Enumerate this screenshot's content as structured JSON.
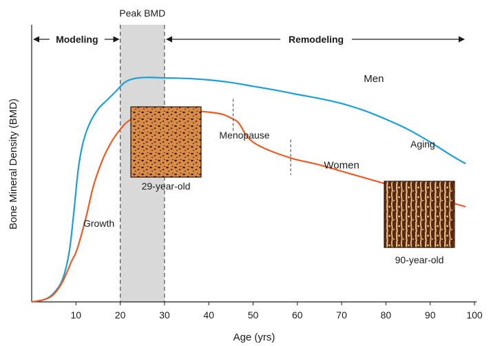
{
  "chart_data": {
    "type": "line",
    "title": "",
    "xlabel": "Age (yrs)",
    "ylabel": "Bone Mineral Density (BMD)",
    "xlim": [
      0,
      100
    ],
    "ylim": [
      0,
      100
    ],
    "x_ticks": [
      "10",
      "20",
      "30",
      "40",
      "50",
      "60",
      "70",
      "80",
      "90",
      "100"
    ],
    "series": [
      {
        "name": "Men",
        "color": "#1a9fd6",
        "points": [
          [
            0,
            0
          ],
          [
            3,
            1
          ],
          [
            5,
            3.5
          ],
          [
            7,
            9
          ],
          [
            8.5,
            20
          ],
          [
            9.5,
            35
          ],
          [
            10.5,
            52
          ],
          [
            11.5,
            62
          ],
          [
            13,
            70
          ],
          [
            15,
            76
          ],
          [
            17,
            79.5
          ],
          [
            19,
            83
          ],
          [
            21,
            86.5
          ],
          [
            23,
            88
          ],
          [
            26,
            88.5
          ],
          [
            30,
            88.3
          ],
          [
            35,
            88.1
          ],
          [
            40,
            87.5
          ],
          [
            45,
            86.5
          ],
          [
            50,
            85
          ],
          [
            55,
            83.5
          ],
          [
            60,
            81.8
          ],
          [
            65,
            80.2
          ],
          [
            70,
            78.2
          ],
          [
            75,
            75.5
          ],
          [
            80,
            72
          ],
          [
            85,
            68
          ],
          [
            90,
            63
          ],
          [
            95,
            57.5
          ],
          [
            98,
            54.5
          ]
        ]
      },
      {
        "name": "Women",
        "color": "#ef5a24",
        "points": [
          [
            0,
            0
          ],
          [
            3,
            1
          ],
          [
            5,
            3
          ],
          [
            7,
            8
          ],
          [
            9,
            16
          ],
          [
            10,
            19.5
          ],
          [
            11,
            25
          ],
          [
            12.5,
            35
          ],
          [
            14,
            46
          ],
          [
            16,
            56
          ],
          [
            18,
            63
          ],
          [
            20,
            68
          ],
          [
            22,
            71.5
          ],
          [
            25,
            74
          ],
          [
            27.5,
            75.3
          ],
          [
            30,
            75.6
          ],
          [
            35,
            75.5
          ],
          [
            40,
            74.8
          ],
          [
            43,
            74
          ],
          [
            45,
            72.5
          ],
          [
            46.5,
            71
          ],
          [
            47.5,
            68.5
          ],
          [
            48.5,
            65.5
          ],
          [
            50,
            63
          ],
          [
            52,
            61
          ],
          [
            55,
            58.8
          ],
          [
            58,
            57
          ],
          [
            60,
            56
          ],
          [
            65,
            54
          ],
          [
            70,
            51.5
          ],
          [
            75,
            49
          ],
          [
            80,
            46.5
          ],
          [
            85,
            44
          ],
          [
            90,
            41.5
          ],
          [
            95,
            39
          ],
          [
            98,
            37.5
          ]
        ]
      }
    ],
    "shaded_band": {
      "label": "Peak BMD",
      "from": 20,
      "to": 30
    },
    "phases": [
      {
        "label": "Modeling",
        "from": 0,
        "to": 20
      },
      {
        "label": "Remodeling",
        "from": 30,
        "to": 98
      }
    ],
    "markers": [
      {
        "label": "Menopause",
        "x": 45.5
      },
      {
        "label": "",
        "x": 58.5
      }
    ],
    "annotations": {
      "growth": "Growth",
      "aging": "Aging",
      "young_bone": "29-year-old",
      "old_bone": "90-year-old"
    }
  }
}
